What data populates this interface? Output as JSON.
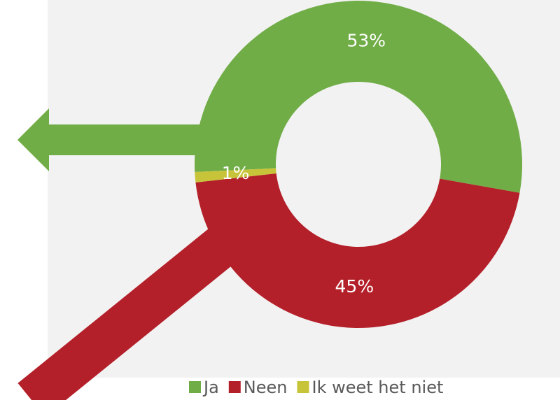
{
  "chart_data": {
    "type": "donut",
    "categories": [
      "Ja",
      "Neen",
      "Ik weet het niet"
    ],
    "values": [
      53,
      45,
      1
    ],
    "value_labels": [
      "53%",
      "45%",
      "1%"
    ],
    "colors": [
      "#70ad47",
      "#b4202a",
      "#c8c43a"
    ],
    "legend": "bottom"
  }
}
